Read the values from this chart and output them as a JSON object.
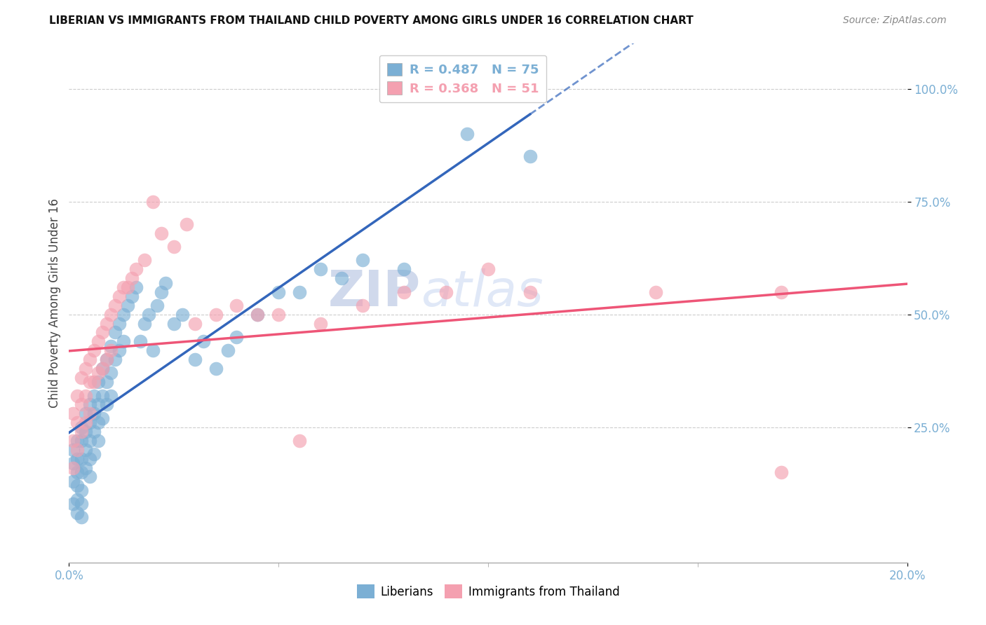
{
  "title": "LIBERIAN VS IMMIGRANTS FROM THAILAND CHILD POVERTY AMONG GIRLS UNDER 16 CORRELATION CHART",
  "source": "Source: ZipAtlas.com",
  "ylabel": "Child Poverty Among Girls Under 16",
  "xlim": [
    0.0,
    0.2
  ],
  "ylim": [
    -0.05,
    1.1
  ],
  "blue_color": "#7BAFD4",
  "pink_color": "#F4A0B0",
  "blue_line_color": "#3366BB",
  "pink_line_color": "#EE5577",
  "blue_line_solid_end": 0.1,
  "watermark_zip": "ZIP",
  "watermark_atlas": "atlas",
  "legend_blue_text": "R = 0.487   N = 75",
  "legend_pink_text": "R = 0.368   N = 51",
  "blue_scatter_x": [
    0.001,
    0.001,
    0.001,
    0.001,
    0.002,
    0.002,
    0.002,
    0.002,
    0.002,
    0.002,
    0.003,
    0.003,
    0.003,
    0.003,
    0.003,
    0.003,
    0.003,
    0.004,
    0.004,
    0.004,
    0.004,
    0.005,
    0.005,
    0.005,
    0.005,
    0.005,
    0.006,
    0.006,
    0.006,
    0.006,
    0.007,
    0.007,
    0.007,
    0.007,
    0.008,
    0.008,
    0.008,
    0.009,
    0.009,
    0.009,
    0.01,
    0.01,
    0.01,
    0.011,
    0.011,
    0.012,
    0.012,
    0.013,
    0.013,
    0.014,
    0.015,
    0.016,
    0.017,
    0.018,
    0.019,
    0.02,
    0.021,
    0.022,
    0.023,
    0.025,
    0.027,
    0.03,
    0.032,
    0.035,
    0.038,
    0.04,
    0.045,
    0.05,
    0.055,
    0.06,
    0.065,
    0.07,
    0.08,
    0.095,
    0.11
  ],
  "blue_scatter_y": [
    0.2,
    0.17,
    0.13,
    0.08,
    0.22,
    0.18,
    0.15,
    0.12,
    0.09,
    0.06,
    0.25,
    0.22,
    0.18,
    0.15,
    0.11,
    0.08,
    0.05,
    0.28,
    0.24,
    0.2,
    0.16,
    0.3,
    0.26,
    0.22,
    0.18,
    0.14,
    0.32,
    0.28,
    0.24,
    0.19,
    0.35,
    0.3,
    0.26,
    0.22,
    0.38,
    0.32,
    0.27,
    0.4,
    0.35,
    0.3,
    0.43,
    0.37,
    0.32,
    0.46,
    0.4,
    0.48,
    0.42,
    0.5,
    0.44,
    0.52,
    0.54,
    0.56,
    0.44,
    0.48,
    0.5,
    0.42,
    0.52,
    0.55,
    0.57,
    0.48,
    0.5,
    0.4,
    0.44,
    0.38,
    0.42,
    0.45,
    0.5,
    0.55,
    0.55,
    0.6,
    0.58,
    0.62,
    0.6,
    0.9,
    0.85
  ],
  "pink_scatter_x": [
    0.001,
    0.001,
    0.001,
    0.002,
    0.002,
    0.002,
    0.003,
    0.003,
    0.003,
    0.004,
    0.004,
    0.004,
    0.005,
    0.005,
    0.005,
    0.006,
    0.006,
    0.007,
    0.007,
    0.008,
    0.008,
    0.009,
    0.009,
    0.01,
    0.01,
    0.011,
    0.012,
    0.013,
    0.014,
    0.015,
    0.016,
    0.018,
    0.02,
    0.022,
    0.025,
    0.028,
    0.03,
    0.035,
    0.04,
    0.045,
    0.05,
    0.055,
    0.06,
    0.07,
    0.08,
    0.09,
    0.1,
    0.11,
    0.14,
    0.17,
    0.17
  ],
  "pink_scatter_y": [
    0.28,
    0.22,
    0.16,
    0.32,
    0.26,
    0.2,
    0.36,
    0.3,
    0.24,
    0.38,
    0.32,
    0.26,
    0.4,
    0.35,
    0.28,
    0.42,
    0.35,
    0.44,
    0.37,
    0.46,
    0.38,
    0.48,
    0.4,
    0.5,
    0.42,
    0.52,
    0.54,
    0.56,
    0.56,
    0.58,
    0.6,
    0.62,
    0.75,
    0.68,
    0.65,
    0.7,
    0.48,
    0.5,
    0.52,
    0.5,
    0.5,
    0.22,
    0.48,
    0.52,
    0.55,
    0.55,
    0.6,
    0.55,
    0.55,
    0.55,
    0.15
  ]
}
